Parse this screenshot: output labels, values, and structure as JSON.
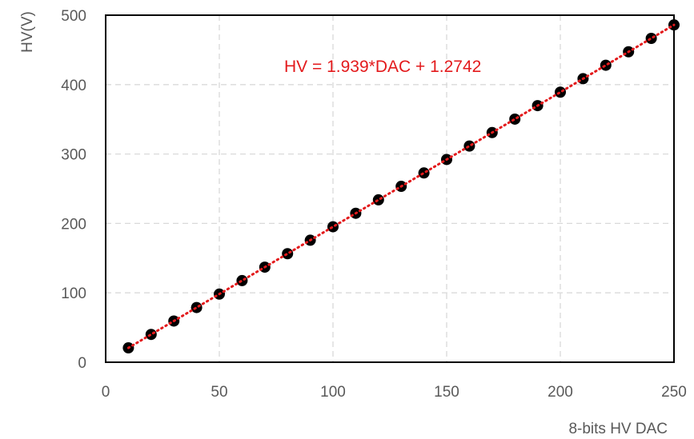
{
  "chart_data": {
    "type": "scatter",
    "title": "",
    "xlabel": "8-bits HV DAC",
    "ylabel": "HV(V)",
    "xlim": [
      0,
      250
    ],
    "ylim": [
      0,
      500
    ],
    "xticks": [
      "0",
      "50",
      "100",
      "150",
      "200",
      "250"
    ],
    "yticks": [
      "0",
      "100",
      "200",
      "300",
      "400",
      "500"
    ],
    "grid": true,
    "legend": "none",
    "series": [
      {
        "x": [
          10,
          20,
          30,
          40,
          50,
          60,
          70,
          80,
          90,
          100,
          110,
          120,
          130,
          140,
          150,
          160,
          170,
          180,
          190,
          200,
          210,
          220,
          230,
          240,
          250
        ],
        "y": [
          20.7,
          40.1,
          59.4,
          78.8,
          98.2,
          117.6,
          137.0,
          156.4,
          175.8,
          195.2,
          214.6,
          234.0,
          253.4,
          272.7,
          292.1,
          311.5,
          330.9,
          350.3,
          369.7,
          389.1,
          408.5,
          427.9,
          447.3,
          466.6,
          486.0
        ],
        "color": "#000000"
      }
    ],
    "trendline": {
      "equation": "HV = 1.939*DAC + 1.2742",
      "slope": 1.939,
      "intercept": 1.2742,
      "x_range": [
        10,
        250
      ],
      "color": "#e31a1c"
    }
  }
}
